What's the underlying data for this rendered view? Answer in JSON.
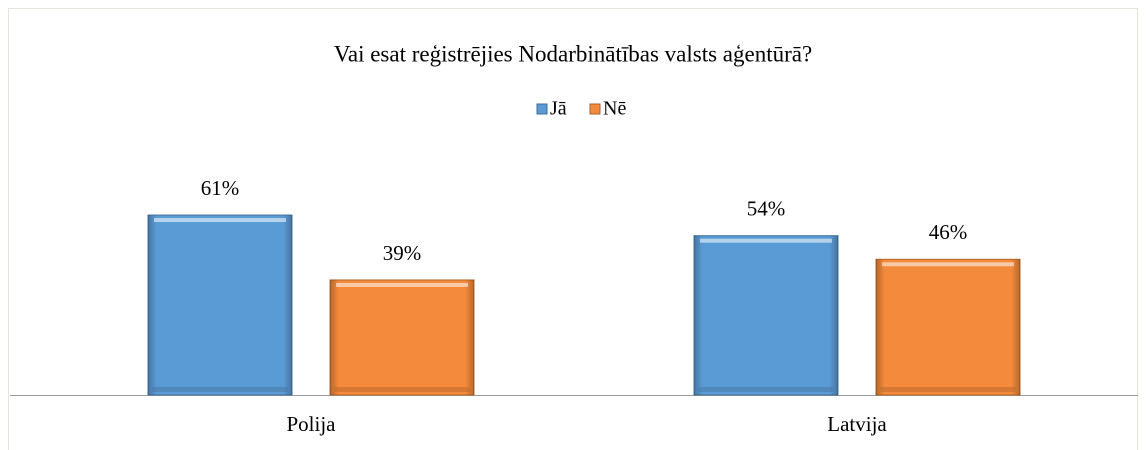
{
  "chart_data": {
    "type": "bar",
    "title": "Vai esat reģistrējies Nodarbinātības valsts aģentūrā?",
    "categories": [
      "Polija",
      "Latvija"
    ],
    "series": [
      {
        "name": "Jā",
        "color": "#5b9bd5",
        "values": [
          61,
          54
        ],
        "value_labels": [
          "61%",
          "54%"
        ]
      },
      {
        "name": "Nē",
        "color": "#f48a3b",
        "values": [
          39,
          46
        ],
        "value_labels": [
          "39%",
          "46%"
        ]
      }
    ],
    "legend": "top"
  }
}
